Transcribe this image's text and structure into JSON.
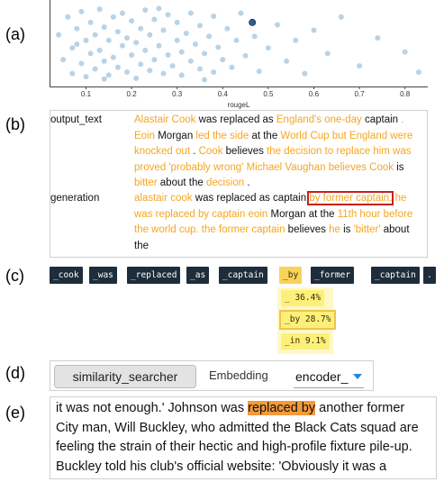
{
  "labels": {
    "a": "(a)",
    "b": "(b)",
    "c": "(c)",
    "d": "(d)",
    "e": "(e)"
  },
  "chart_data": {
    "type": "scatter",
    "xlabel": "rougeL",
    "xlim": [
      0.02,
      0.85
    ],
    "ylim": [
      0,
      1
    ],
    "ticks": [
      "0.1",
      "0.2",
      "0.3",
      "0.4",
      "0.5",
      "0.6",
      "0.7",
      "0.8"
    ],
    "tick_values": [
      0.1,
      0.2,
      0.3,
      0.4,
      0.5,
      0.6,
      0.7,
      0.8
    ],
    "highlight": {
      "x": 0.465,
      "y": 0.78
    },
    "points": [
      [
        0.04,
        0.62
      ],
      [
        0.05,
        0.3
      ],
      [
        0.06,
        0.85
      ],
      [
        0.07,
        0.45
      ],
      [
        0.07,
        0.12
      ],
      [
        0.08,
        0.7
      ],
      [
        0.09,
        0.25
      ],
      [
        0.09,
        0.92
      ],
      [
        0.1,
        0.55
      ],
      [
        0.1,
        0.08
      ],
      [
        0.11,
        0.38
      ],
      [
        0.11,
        0.78
      ],
      [
        0.12,
        0.18
      ],
      [
        0.12,
        0.62
      ],
      [
        0.13,
        0.95
      ],
      [
        0.13,
        0.42
      ],
      [
        0.14,
        0.28
      ],
      [
        0.14,
        0.72
      ],
      [
        0.15,
        0.1
      ],
      [
        0.15,
        0.55
      ],
      [
        0.16,
        0.85
      ],
      [
        0.16,
        0.33
      ],
      [
        0.17,
        0.66
      ],
      [
        0.17,
        0.2
      ],
      [
        0.18,
        0.48
      ],
      [
        0.18,
        0.9
      ],
      [
        0.19,
        0.14
      ],
      [
        0.19,
        0.58
      ],
      [
        0.2,
        0.36
      ],
      [
        0.2,
        0.8
      ],
      [
        0.21,
        0.06
      ],
      [
        0.21,
        0.52
      ],
      [
        0.22,
        0.24
      ],
      [
        0.22,
        0.7
      ],
      [
        0.23,
        0.42
      ],
      [
        0.23,
        0.94
      ],
      [
        0.24,
        0.16
      ],
      [
        0.24,
        0.62
      ],
      [
        0.25,
        0.3
      ],
      [
        0.25,
        0.82
      ],
      [
        0.26,
        0.48
      ],
      [
        0.27,
        0.12
      ],
      [
        0.27,
        0.68
      ],
      [
        0.28,
        0.36
      ],
      [
        0.28,
        0.88
      ],
      [
        0.29,
        0.22
      ],
      [
        0.3,
        0.55
      ],
      [
        0.3,
        0.78
      ],
      [
        0.31,
        0.1
      ],
      [
        0.31,
        0.4
      ],
      [
        0.32,
        0.64
      ],
      [
        0.33,
        0.28
      ],
      [
        0.33,
        0.9
      ],
      [
        0.34,
        0.5
      ],
      [
        0.35,
        0.18
      ],
      [
        0.35,
        0.74
      ],
      [
        0.36,
        0.38
      ],
      [
        0.37,
        0.6
      ],
      [
        0.38,
        0.14
      ],
      [
        0.38,
        0.86
      ],
      [
        0.39,
        0.46
      ],
      [
        0.4,
        0.3
      ],
      [
        0.41,
        0.7
      ],
      [
        0.42,
        0.2
      ],
      [
        0.43,
        0.55
      ],
      [
        0.44,
        0.9
      ],
      [
        0.45,
        0.35
      ],
      [
        0.47,
        0.6
      ],
      [
        0.48,
        0.15
      ],
      [
        0.5,
        0.45
      ],
      [
        0.52,
        0.75
      ],
      [
        0.54,
        0.28
      ],
      [
        0.56,
        0.55
      ],
      [
        0.58,
        0.12
      ],
      [
        0.6,
        0.68
      ],
      [
        0.63,
        0.38
      ],
      [
        0.66,
        0.85
      ],
      [
        0.7,
        0.22
      ],
      [
        0.74,
        0.58
      ],
      [
        0.8,
        0.4
      ],
      [
        0.83,
        0.14
      ],
      [
        0.08,
        0.5
      ],
      [
        0.14,
        0.05
      ],
      [
        0.26,
        0.96
      ],
      [
        0.36,
        0.04
      ]
    ]
  },
  "panel_b": {
    "output_field": "output_text",
    "generation_field": "generation",
    "output_segments": [
      {
        "t": "Alastair Cook",
        "h": true
      },
      {
        "t": " was replaced as ",
        "h": false
      },
      {
        "t": "England's one-day",
        "h": true
      },
      {
        "t": " captain ",
        "h": false
      },
      {
        "t": ". Eoin",
        "h": true
      },
      {
        "t": " Morgan ",
        "h": false
      },
      {
        "t": "led the side",
        "h": true
      },
      {
        "t": " at the ",
        "h": false
      },
      {
        "t": "World Cup but England were knocked out",
        "h": true
      },
      {
        "t": " . ",
        "h": false
      },
      {
        "t": "Cook",
        "h": true
      },
      {
        "t": " believes ",
        "h": false
      },
      {
        "t": "the decision to replace him was proved 'probably wrong' Michael Vaughan believes Cook",
        "h": true
      },
      {
        "t": " is ",
        "h": false
      },
      {
        "t": "bitter",
        "h": true
      },
      {
        "t": " about the ",
        "h": false
      },
      {
        "t": "decision",
        "h": true
      },
      {
        "t": " .",
        "h": false
      }
    ],
    "generation_segments": [
      {
        "t": "alastair cook",
        "h": true
      },
      {
        "t": " was replaced as captain ",
        "h": false
      },
      {
        "t": "by former captain.",
        "h": true,
        "boxed": true
      },
      {
        "t": " he was replaced by captain eoin",
        "h": true
      },
      {
        "t": " Morgan at the ",
        "h": false
      },
      {
        "t": "11th hour",
        "h": true
      },
      {
        "t": " before the world cup. the former captain",
        "h": true
      },
      {
        "t": " believes ",
        "h": false
      },
      {
        "t": "he",
        "h": true
      },
      {
        "t": " is ",
        "h": false
      },
      {
        "t": "'bitter'",
        "h": true
      },
      {
        "t": " about the",
        "h": false
      }
    ]
  },
  "tokens": [
    "_cook",
    "_was",
    "_replaced",
    "_as",
    "_captain",
    "_by",
    "_former",
    "_captain",
    "."
  ],
  "selected_token_index": 5,
  "candidates": [
    {
      "label": "_ 36.4%",
      "top": false
    },
    {
      "label": "_by 28.7%",
      "top": true
    },
    {
      "label": "_in 9.1%",
      "top": false
    }
  ],
  "control": {
    "searcher_label": "similarity_searcher",
    "embedding_label": "Embedding",
    "embedding_value": "encoder_"
  },
  "passage": {
    "before": "it was not enough.' Johnson was ",
    "highlight": "replaced by",
    "after": " another former City man, Will Buckley, who admitted the Black Cats squad are feeling the strain of their hectic and high-profile fixture pile-up. Buckley told his club's official website: 'Obviously it was a"
  },
  "colors": {
    "accent": "#f5a623",
    "box": "#c81e1e",
    "token_bg": "#1e2d3b",
    "dot": "#8ab6d6",
    "dot_highlight": "#2f5f8a"
  }
}
